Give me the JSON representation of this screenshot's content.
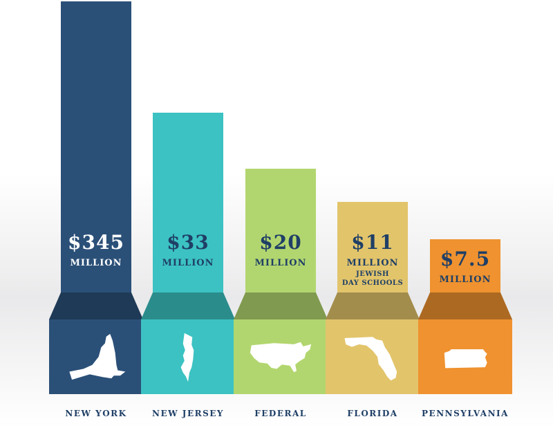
{
  "chart_data": {
    "type": "bar",
    "title": "",
    "xlabel": "",
    "ylabel": "",
    "categories": [
      "NEW YORK",
      "NEW JERSEY",
      "FEDERAL",
      "FLORIDA",
      "PENNSYLVANIA"
    ],
    "values": [
      345,
      33,
      20,
      11,
      7.5
    ],
    "value_labels": [
      "$345",
      "$33",
      "$20",
      "$11",
      "$7.5"
    ],
    "unit_label": "MILLION",
    "annotations": [
      {
        "category": "FLORIDA",
        "lines": [
          "JEWISH",
          "DAY SCHOOLS"
        ]
      }
    ],
    "colors": {
      "NEW YORK": "#2b5078",
      "NEW JERSEY": "#3cc2c2",
      "FEDERAL": "#b2d66f",
      "FLORIDA": "#e2c46b",
      "PENNSYLVANIA": "#ef922f"
    },
    "label_color": "#1f3f66",
    "icons": [
      "new-york-state-icon",
      "new-jersey-state-icon",
      "usa-map-icon",
      "florida-state-icon",
      "pennsylvania-state-icon"
    ]
  }
}
